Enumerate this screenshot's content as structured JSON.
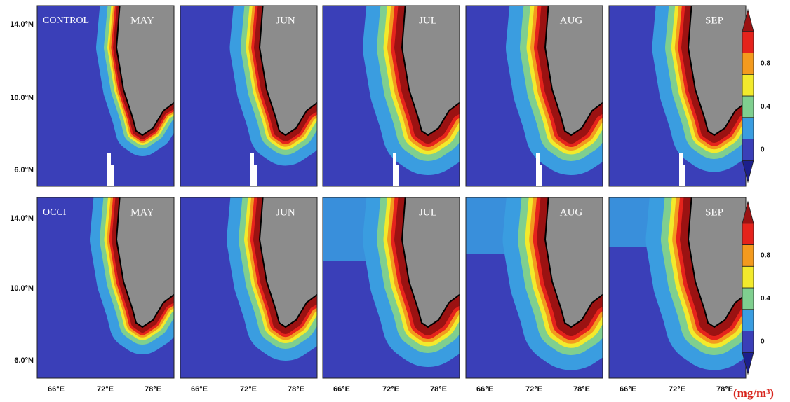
{
  "rows": [
    {
      "label": "CONTROL",
      "panels": [
        "MAY",
        "JUN",
        "JUL",
        "AUG",
        "SEP"
      ]
    },
    {
      "label": "OCCI",
      "panels": [
        "MAY",
        "JUN",
        "JUL",
        "AUG",
        "SEP"
      ]
    }
  ],
  "lat_ticks": [
    "14.0°N",
    "10.0°N",
    "6.0°N"
  ],
  "lon_ticks": [
    "66°E",
    "72°E",
    "78°E"
  ],
  "colorbar": {
    "ticks": [
      0,
      0.4,
      0.8
    ],
    "unit": "(mg/m³)",
    "colors": [
      "#1c1f8c",
      "#3a3fb8",
      "#3a9de0",
      "#7fcf8f",
      "#f2ea2c",
      "#f39a1e",
      "#e5231c",
      "#9b1212"
    ]
  }
}
